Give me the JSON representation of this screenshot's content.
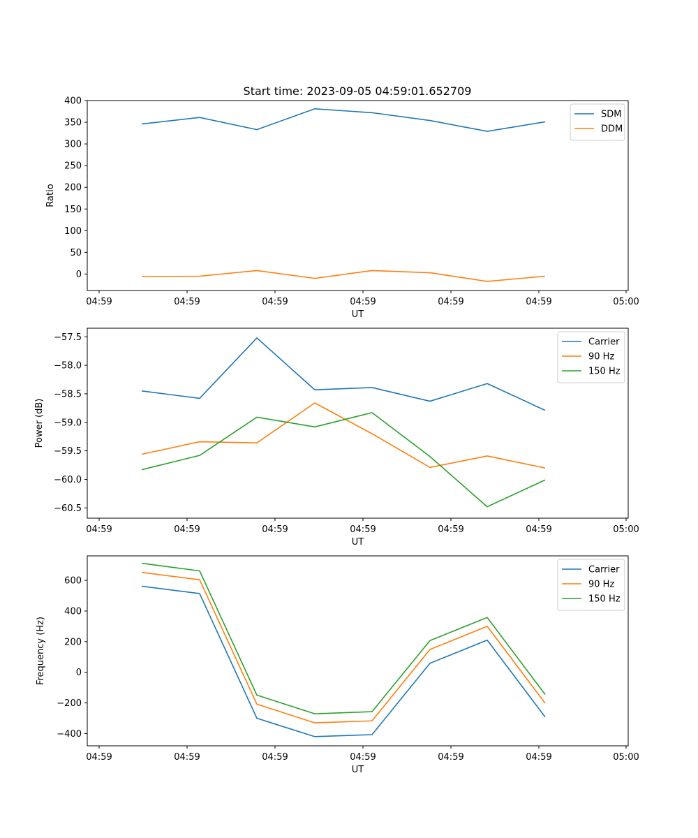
{
  "title": "Start time: 2023-09-05 04:59:01.652709",
  "chart_data": [
    {
      "type": "line",
      "ylabel": "Ratio",
      "xlabel": "UT",
      "ylim": [
        -38,
        400
      ],
      "yticks": [
        "400",
        "350",
        "300",
        "250",
        "200",
        "150",
        "100",
        "50",
        "0"
      ],
      "ytick_values": [
        400,
        350,
        300,
        250,
        200,
        150,
        100,
        50,
        0
      ],
      "xticks": [
        "04:59",
        "04:59",
        "04:59",
        "04:59",
        "04:59",
        "04:59",
        "05:00"
      ],
      "legend_position": "upper right",
      "series": [
        {
          "name": "SDM",
          "color": "#1f77b4",
          "values": [
            346,
            361,
            333,
            381,
            372,
            354,
            329,
            351
          ]
        },
        {
          "name": "DDM",
          "color": "#ff7f0e",
          "values": [
            -6,
            -5,
            8,
            -10,
            8,
            3,
            -17,
            -5
          ]
        }
      ]
    },
    {
      "type": "line",
      "ylabel": "Power (dB)",
      "xlabel": "UT",
      "ylim": [
        -60.68,
        -57.35
      ],
      "yticks": [
        "−57.5",
        "−58.0",
        "−58.5",
        "−59.0",
        "−59.5",
        "−60.0",
        "−60.5"
      ],
      "ytick_values": [
        -57.5,
        -58.0,
        -58.5,
        -59.0,
        -59.5,
        -60.0,
        -60.5
      ],
      "xticks": [
        "04:59",
        "04:59",
        "04:59",
        "04:59",
        "04:59",
        "04:59",
        "05:00"
      ],
      "legend_position": "upper right",
      "series": [
        {
          "name": "Carrier",
          "color": "#1f77b4",
          "values": [
            -58.45,
            -58.58,
            -57.52,
            -58.43,
            -58.39,
            -58.63,
            -58.32,
            -58.79
          ]
        },
        {
          "name": "90 Hz",
          "color": "#ff7f0e",
          "values": [
            -59.56,
            -59.34,
            -59.36,
            -58.66,
            -59.2,
            -59.79,
            -59.59,
            -59.8
          ]
        },
        {
          "name": "150 Hz",
          "color": "#2ca02c",
          "values": [
            -59.83,
            -59.58,
            -58.91,
            -59.08,
            -58.83,
            -59.6,
            -60.48,
            -60.01
          ]
        }
      ]
    },
    {
      "type": "line",
      "ylabel": "Frequency (Hz)",
      "xlabel": "UT",
      "ylim": [
        -480,
        760
      ],
      "yticks": [
        "600",
        "400",
        "200",
        "0",
        "−200",
        "−400"
      ],
      "ytick_values": [
        600,
        400,
        200,
        0,
        -200,
        -400
      ],
      "xticks": [
        "04:59",
        "04:59",
        "04:59",
        "04:59",
        "04:59",
        "04:59",
        "05:00"
      ],
      "legend_position": "upper right",
      "series": [
        {
          "name": "Carrier",
          "color": "#1f77b4",
          "values": [
            562,
            514,
            -300,
            -420,
            -407,
            59,
            210,
            -292
          ]
        },
        {
          "name": "90 Hz",
          "color": "#ff7f0e",
          "values": [
            652,
            604,
            -208,
            -330,
            -317,
            149,
            300,
            -202
          ]
        },
        {
          "name": "150 Hz",
          "color": "#2ca02c",
          "values": [
            712,
            662,
            -149,
            -271,
            -257,
            207,
            358,
            -145
          ]
        }
      ]
    }
  ]
}
